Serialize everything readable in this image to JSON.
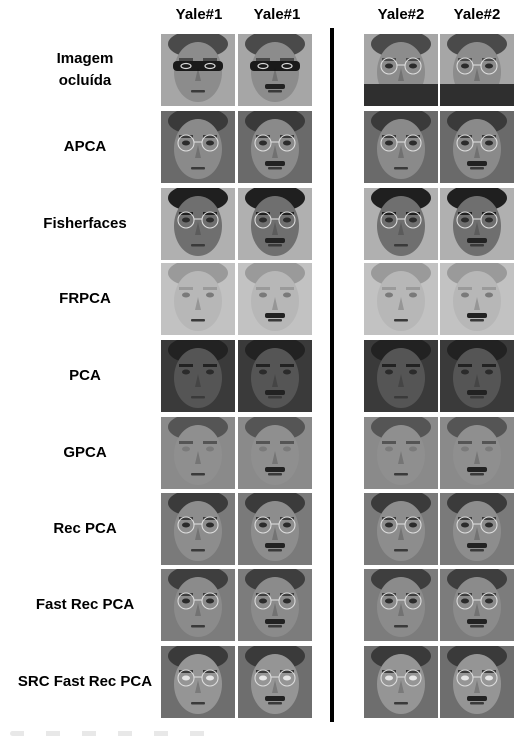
{
  "columns": [
    "Yale#1",
    "Yale#1",
    "Yale#2",
    "Yale#2"
  ],
  "rows": [
    {
      "label_lines": [
        "Imagem",
        "ocluída"
      ],
      "style": "occluded"
    },
    {
      "label_lines": [
        "APCA"
      ],
      "style": "apca"
    },
    {
      "label_lines": [
        "Fisherfaces"
      ],
      "style": "fisher"
    },
    {
      "label_lines": [
        "FRPCA"
      ],
      "style": "frpca"
    },
    {
      "label_lines": [
        "PCA"
      ],
      "style": "pca"
    },
    {
      "label_lines": [
        "GPCA"
      ],
      "style": "gpca"
    },
    {
      "label_lines": [
        "Rec PCA"
      ],
      "style": "recpca"
    },
    {
      "label_lines": [
        "Fast Rec PCA"
      ],
      "style": "fastrec"
    },
    {
      "label_lines": [
        "SRC Fast Rec PCA"
      ],
      "style": "srcfast"
    }
  ],
  "colors": {
    "divider": "#000000",
    "background": "#ffffff"
  }
}
